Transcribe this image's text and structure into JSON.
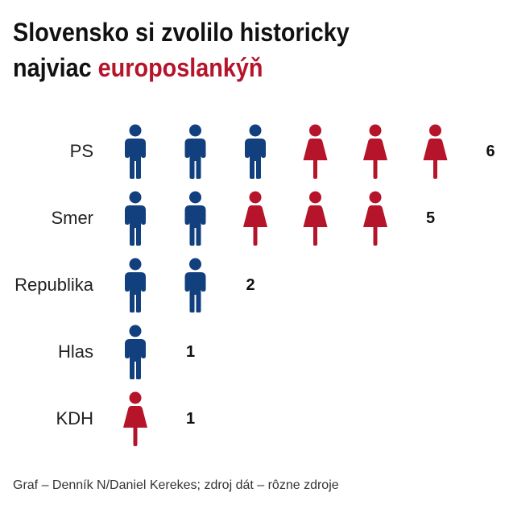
{
  "title": {
    "line1": "Slovensko si zvolilo historicky",
    "line2_plain": "najviac ",
    "line2_accent": "europoslankýň"
  },
  "colors": {
    "men": "#123f7d",
    "women": "#b5142a"
  },
  "chart_data": {
    "type": "pictogram",
    "categories": [
      "PS",
      "Smer",
      "Republika",
      "Hlas",
      "KDH"
    ],
    "series": [
      {
        "values": [
          3,
          2,
          2,
          1,
          0
        ]
      },
      {
        "values": [
          3,
          3,
          0,
          0,
          1
        ]
      }
    ],
    "totals": [
      6,
      5,
      2,
      1,
      1
    ]
  },
  "source": "Graf – Denník N/Daniel Kerekes; zdroj dát – rôzne zdroje"
}
